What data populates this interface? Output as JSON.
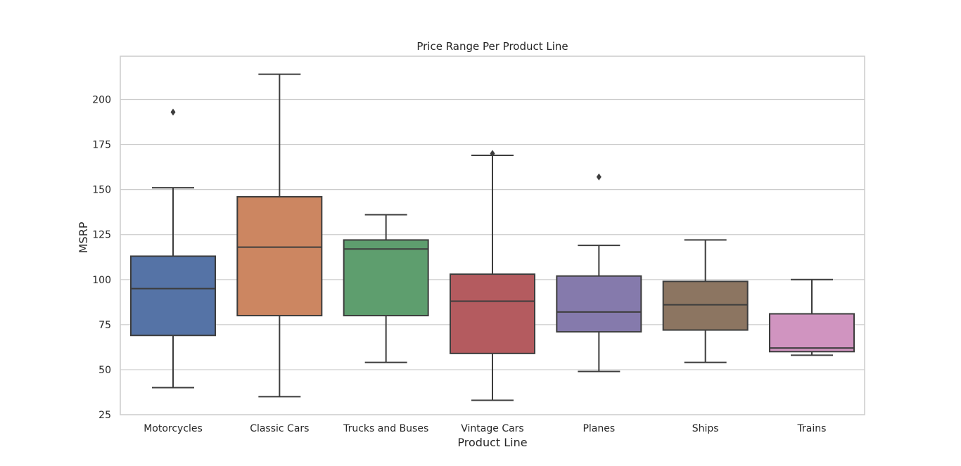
{
  "chart_data": {
    "type": "boxplot",
    "title": "Price Range Per Product Line",
    "xlabel": "Product Line",
    "ylabel": "MSRP",
    "ylim": [
      25,
      224
    ],
    "yticks": [
      25,
      50,
      75,
      100,
      125,
      150,
      175,
      200
    ],
    "grid": "horizontal",
    "categories": [
      "Motorcycles",
      "Classic Cars",
      "Trucks and Buses",
      "Vintage Cars",
      "Planes",
      "Ships",
      "Trains"
    ],
    "colors": [
      "#5573a6",
      "#cc8661",
      "#5e9e6e",
      "#b45b5f",
      "#857aac",
      "#8c7561",
      "#d094c0"
    ],
    "boxes": [
      {
        "name": "Motorcycles",
        "whisker_low": 40,
        "q1": 69,
        "median": 95,
        "q3": 113,
        "whisker_high": 151,
        "outliers": [
          193
        ]
      },
      {
        "name": "Classic Cars",
        "whisker_low": 35,
        "q1": 80,
        "median": 118,
        "q3": 146,
        "whisker_high": 214,
        "outliers": []
      },
      {
        "name": "Trucks and Buses",
        "whisker_low": 54,
        "q1": 80,
        "median": 117,
        "q3": 122,
        "whisker_high": 136,
        "outliers": []
      },
      {
        "name": "Vintage Cars",
        "whisker_low": 33,
        "q1": 59,
        "median": 88,
        "q3": 103,
        "whisker_high": 169,
        "outliers": [
          170
        ]
      },
      {
        "name": "Planes",
        "whisker_low": 49,
        "q1": 71,
        "median": 82,
        "q3": 102,
        "whisker_high": 119,
        "outliers": [
          157
        ]
      },
      {
        "name": "Ships",
        "whisker_low": 54,
        "q1": 72,
        "median": 86,
        "q3": 99,
        "whisker_high": 122,
        "outliers": []
      },
      {
        "name": "Trains",
        "whisker_low": 58,
        "q1": 60,
        "median": 62,
        "q3": 81,
        "whisker_high": 100,
        "outliers": []
      }
    ]
  }
}
